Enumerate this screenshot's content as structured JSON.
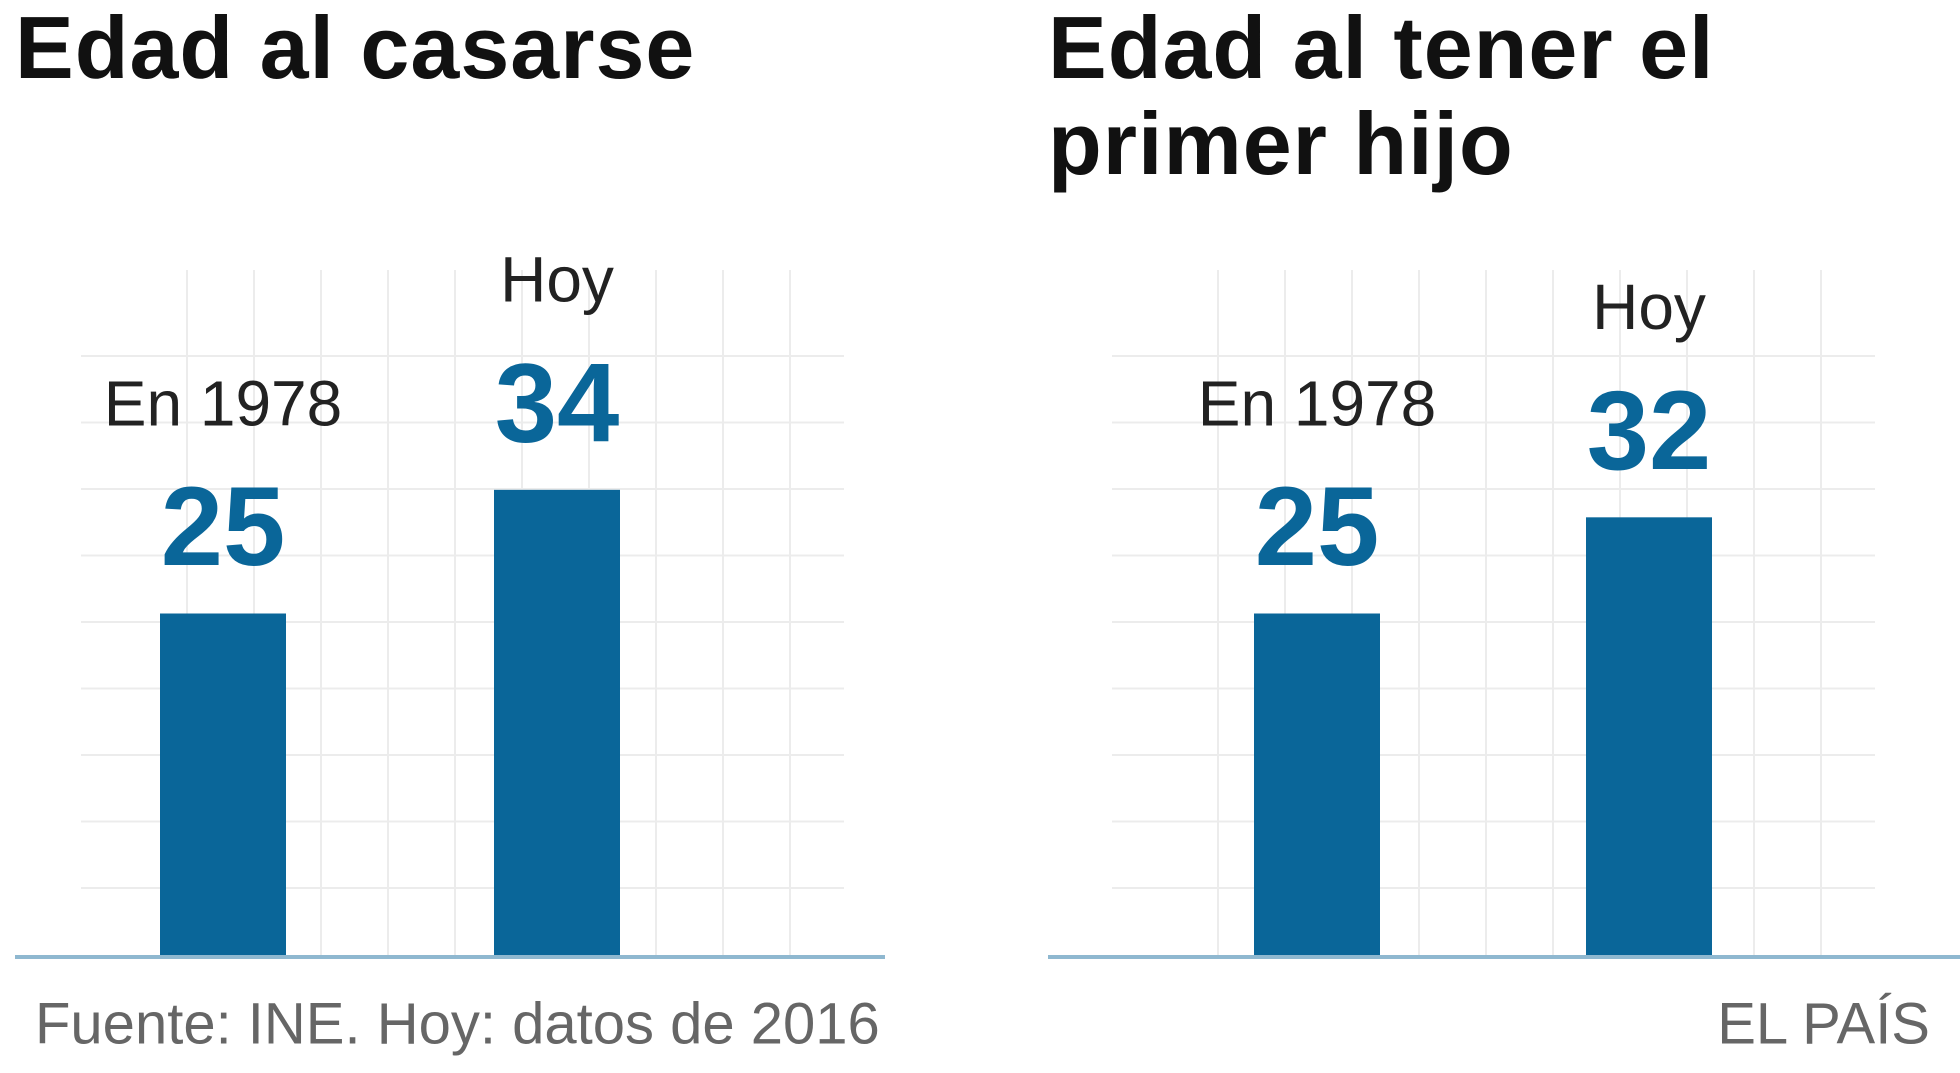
{
  "chart_data": [
    {
      "type": "bar",
      "title": "Edad al casarse",
      "categories": [
        "En 1978",
        "Hoy"
      ],
      "values": [
        25,
        34
      ],
      "color": "#0a6699",
      "ylim": [
        0,
        50
      ]
    },
    {
      "type": "bar",
      "title": "Edad al tener el primer hijo",
      "categories": [
        "En 1978",
        "Hoy"
      ],
      "values": [
        25,
        32
      ],
      "color": "#0a6699",
      "ylim": [
        0,
        50
      ]
    }
  ],
  "source": "Fuente: INE. Hoy: datos de 2016",
  "credit": "EL PAÍS"
}
